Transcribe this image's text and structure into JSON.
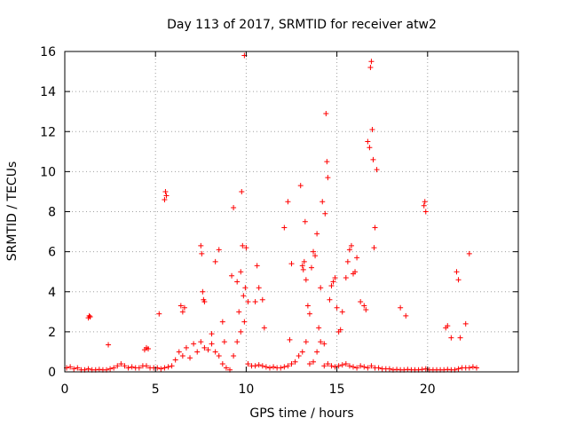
{
  "chart_data": {
    "type": "scatter",
    "title": "Day 113 of 2017, SRMTID for receiver atw2",
    "xlabel": "GPS time / hours",
    "ylabel": "SRMTID / TECUs",
    "xlim": [
      0,
      25
    ],
    "ylim": [
      0,
      16
    ],
    "xticks": [
      0,
      5,
      10,
      15,
      20
    ],
    "yticks": [
      0,
      2,
      4,
      6,
      8,
      10,
      12,
      14,
      16
    ],
    "xtick_labels": [
      "0",
      "5",
      "10",
      "15",
      "20"
    ],
    "ytick_labels": [
      "0",
      "2",
      "4",
      "6",
      "8",
      "10",
      "12",
      "14",
      "16"
    ],
    "grid": true,
    "legend": "none",
    "marker": "plus",
    "color": "#ff0000",
    "series": [
      {
        "x": [
          0.1,
          0.3,
          0.5,
          0.7,
          0.9,
          1.1,
          1.3,
          1.5,
          1.7,
          1.9,
          2.1,
          2.3,
          2.5,
          2.7,
          2.9,
          3.1,
          3.3,
          3.5,
          3.7,
          3.9,
          4.1,
          4.3,
          4.5,
          4.7,
          4.9,
          5.1,
          5.3,
          5.5,
          5.7,
          5.9,
          6.1,
          6.3,
          6.5,
          6.7,
          6.9,
          7.1,
          7.3,
          7.5,
          7.7,
          7.9,
          8.1,
          8.3,
          8.5,
          8.7,
          8.9,
          9.1,
          9.3,
          9.5,
          9.7,
          9.9,
          10.1,
          10.3,
          10.5,
          10.7,
          10.9,
          11.1,
          11.3,
          11.5,
          11.7,
          11.9,
          12.1,
          12.3,
          12.5,
          12.7,
          12.9,
          13.1,
          13.3,
          13.5,
          13.7,
          13.9,
          14.1,
          14.3,
          14.5,
          14.7,
          14.9,
          15.1,
          15.3,
          15.5,
          15.7,
          15.9,
          16.1,
          16.3,
          16.5,
          16.7,
          16.9,
          17.1,
          17.3,
          17.5,
          17.7,
          17.9,
          18.1,
          18.3,
          18.5,
          18.7,
          18.9,
          19.1,
          19.3,
          19.5,
          19.7,
          19.9,
          20.1,
          20.3,
          20.5,
          20.7,
          20.9,
          21.1,
          21.3,
          21.5,
          21.7,
          21.9,
          22.1,
          22.3,
          22.5,
          22.7
        ],
        "y": [
          0.2,
          0.25,
          0.15,
          0.2,
          0.1,
          0.1,
          0.15,
          0.1,
          0.1,
          0.12,
          0.1,
          0.1,
          0.15,
          0.2,
          0.3,
          0.4,
          0.3,
          0.2,
          0.25,
          0.2,
          0.2,
          0.3,
          0.3,
          0.2,
          0.2,
          0.2,
          0.15,
          0.2,
          0.25,
          0.3,
          0.6,
          1.0,
          0.8,
          1.2,
          0.7,
          1.4,
          1.0,
          1.5,
          1.2,
          1.1,
          1.4,
          1.0,
          0.8,
          0.4,
          0.2,
          0.1,
          0.8,
          1.5,
          2.0,
          2.5,
          0.4,
          0.3,
          0.3,
          0.35,
          0.3,
          0.25,
          0.2,
          0.25,
          0.2,
          0.2,
          0.25,
          0.3,
          0.4,
          0.5,
          0.8,
          1.0,
          1.5,
          0.4,
          0.5,
          1.0,
          1.5,
          0.3,
          0.4,
          0.3,
          0.25,
          0.3,
          0.35,
          0.4,
          0.3,
          0.25,
          0.2,
          0.3,
          0.25,
          0.2,
          0.3,
          0.2,
          0.2,
          0.15,
          0.15,
          0.15,
          0.1,
          0.12,
          0.1,
          0.1,
          0.12,
          0.1,
          0.1,
          0.1,
          0.12,
          0.15,
          0.1,
          0.1,
          0.1,
          0.1,
          0.1,
          0.12,
          0.1,
          0.1,
          0.15,
          0.2,
          0.2,
          0.2,
          0.25,
          0.2
        ]
      },
      {
        "x": [
          1.3,
          1.35,
          1.4,
          2.4,
          4.4,
          4.5,
          4.6,
          5.2,
          5.5,
          5.55,
          5.6,
          6.4,
          6.5,
          6.6,
          7.5,
          7.55,
          7.6,
          7.65,
          7.7,
          8.1,
          8.3,
          8.5,
          8.7,
          8.8,
          9.2,
          9.3,
          9.5,
          9.6,
          9.7,
          9.75,
          9.8,
          9.85,
          9.9,
          9.95,
          10.0,
          10.1,
          10.5,
          10.6,
          10.7,
          10.9,
          11.0,
          12.1,
          12.3,
          12.4,
          12.5,
          13.0,
          13.1,
          13.15,
          13.2,
          13.25,
          13.3,
          13.4,
          13.5,
          13.6,
          13.7,
          13.8,
          13.9,
          14.0,
          14.1,
          14.2,
          14.3,
          14.35,
          14.4,
          14.45,
          14.5,
          14.6,
          14.7,
          14.8,
          14.9,
          15.0,
          15.1,
          15.2,
          15.3,
          15.5,
          15.6,
          15.7,
          15.8,
          15.9,
          16.0,
          16.1,
          16.3,
          16.5,
          16.6,
          16.7,
          16.8,
          16.85,
          16.9,
          16.95,
          17.0,
          17.05,
          17.1,
          17.2,
          18.5,
          18.8,
          19.8,
          19.85,
          19.9,
          21.0,
          21.1,
          21.3,
          21.6,
          21.7,
          21.8,
          22.1,
          22.3
        ],
        "y": [
          2.7,
          2.8,
          2.75,
          1.35,
          1.1,
          1.2,
          1.15,
          2.9,
          8.6,
          9.0,
          8.8,
          3.3,
          3.0,
          3.2,
          6.3,
          5.9,
          4.0,
          3.6,
          3.5,
          1.9,
          5.5,
          6.1,
          2.5,
          1.5,
          4.8,
          8.2,
          4.5,
          3.0,
          5.0,
          9.0,
          6.3,
          3.8,
          15.8,
          4.2,
          6.2,
          3.5,
          3.5,
          5.3,
          4.2,
          3.6,
          2.2,
          7.2,
          8.5,
          1.6,
          5.4,
          9.3,
          5.3,
          5.1,
          5.5,
          7.5,
          4.6,
          3.3,
          2.9,
          5.2,
          6.0,
          5.8,
          6.9,
          2.2,
          4.2,
          8.5,
          1.4,
          7.9,
          12.9,
          10.5,
          9.7,
          3.6,
          4.3,
          4.5,
          4.7,
          3.2,
          2.0,
          2.1,
          3.0,
          4.7,
          5.5,
          6.1,
          6.3,
          4.9,
          5.0,
          5.7,
          3.5,
          3.3,
          3.1,
          11.5,
          11.2,
          15.2,
          15.5,
          12.1,
          10.6,
          6.2,
          7.2,
          10.1,
          3.2,
          2.8,
          8.3,
          8.5,
          8.0,
          2.2,
          2.3,
          1.7,
          5.0,
          4.6,
          1.7,
          2.4,
          5.9
        ]
      }
    ]
  }
}
